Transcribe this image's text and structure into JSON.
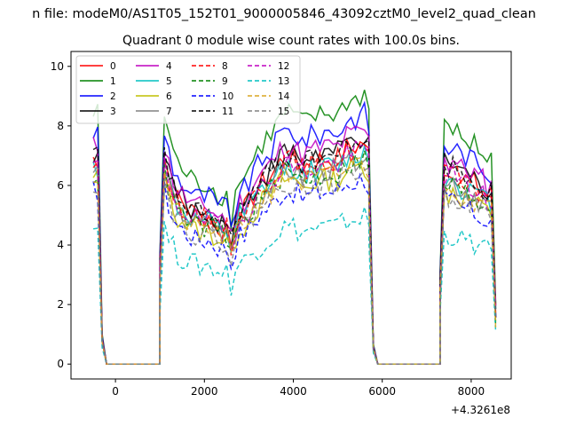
{
  "chart_data": {
    "type": "line",
    "title": "Quadrant 0 module wise count rates with 100.0s bins.",
    "suptitle": "n file: modeM0/AS1T05_152T01_9000005846_43092cztM0_level2_quad_clean",
    "offset_text": "+4.3261e8",
    "xlim": [
      -1000,
      8900
    ],
    "ylim": [
      -0.5,
      10.5
    ],
    "xticks": [
      0,
      2000,
      4000,
      6000,
      8000
    ],
    "yticks": [
      0,
      2,
      4,
      6,
      8,
      10
    ],
    "grid": false,
    "legend_position": "top-left",
    "legend_columns": 4,
    "segments": [
      {
        "start": -500,
        "end": -300,
        "samples": [
          1.0,
          1.0,
          0.12
        ]
      },
      {
        "start": -200,
        "end": 1000,
        "samples": [
          0,
          0,
          0
        ]
      },
      {
        "start": 1000,
        "end": 5700,
        "samples": [
          0.45,
          1.0,
          0.92,
          0.85,
          0.8,
          0.78,
          0.76,
          0.74,
          0.72,
          0.72,
          0.72,
          0.72,
          0.7,
          0.68,
          0.68,
          0.67,
          0.58,
          0.68,
          0.75,
          0.75,
          0.78,
          0.82,
          0.85,
          0.88,
          0.9,
          0.92,
          0.95,
          0.98,
          1.0,
          1.0,
          1.0,
          0.98,
          0.96,
          0.97,
          0.98,
          0.99,
          0.99,
          1.0,
          1.0,
          1.0,
          1.0,
          1.02,
          1.05,
          1.05,
          1.06,
          1.07,
          1.08,
          1.02
        ]
      },
      {
        "start": 5700,
        "end": 5900,
        "samples": [
          0.9,
          0.08,
          0
        ]
      },
      {
        "start": 5900,
        "end": 7300,
        "samples": [
          0,
          0,
          0
        ]
      },
      {
        "start": 7300,
        "end": 8550,
        "samples": [
          0.35,
          0.95,
          0.92,
          0.95,
          0.92,
          0.9,
          0.9,
          0.88,
          0.88,
          0.85,
          0.85,
          0.82,
          0.82,
          0.25
        ]
      }
    ],
    "series": [
      {
        "name": "0",
        "color": "#ff0000",
        "dash": "solid",
        "level": 6.9
      },
      {
        "name": "1",
        "color": "#008000",
        "dash": "solid",
        "level": 8.4
      },
      {
        "name": "2",
        "color": "#0000ff",
        "dash": "solid",
        "level": 7.8
      },
      {
        "name": "3",
        "color": "#000000",
        "dash": "solid",
        "level": 7.1
      },
      {
        "name": "4",
        "color": "#bf00bf",
        "dash": "solid",
        "level": 7.3
      },
      {
        "name": "5",
        "color": "#00bfbf",
        "dash": "solid",
        "level": 6.6
      },
      {
        "name": "6",
        "color": "#bfbf00",
        "dash": "solid",
        "level": 6.2
      },
      {
        "name": "7",
        "color": "#808080",
        "dash": "solid",
        "level": 6.5
      },
      {
        "name": "8",
        "color": "#ff0000",
        "dash": "dashed",
        "level": 6.8
      },
      {
        "name": "9",
        "color": "#008000",
        "dash": "dashed",
        "level": 6.4
      },
      {
        "name": "10",
        "color": "#0000ff",
        "dash": "dashed",
        "level": 5.8
      },
      {
        "name": "11",
        "color": "#000000",
        "dash": "dashed",
        "level": 7.0
      },
      {
        "name": "12",
        "color": "#bf00bf",
        "dash": "dashed",
        "level": 6.7
      },
      {
        "name": "13",
        "color": "#00bfbf",
        "dash": "dashed",
        "level": 4.6
      },
      {
        "name": "14",
        "color": "#daa520",
        "dash": "dashed",
        "level": 6.3
      },
      {
        "name": "15",
        "color": "#808080",
        "dash": "dashed",
        "level": 6.1
      }
    ]
  }
}
